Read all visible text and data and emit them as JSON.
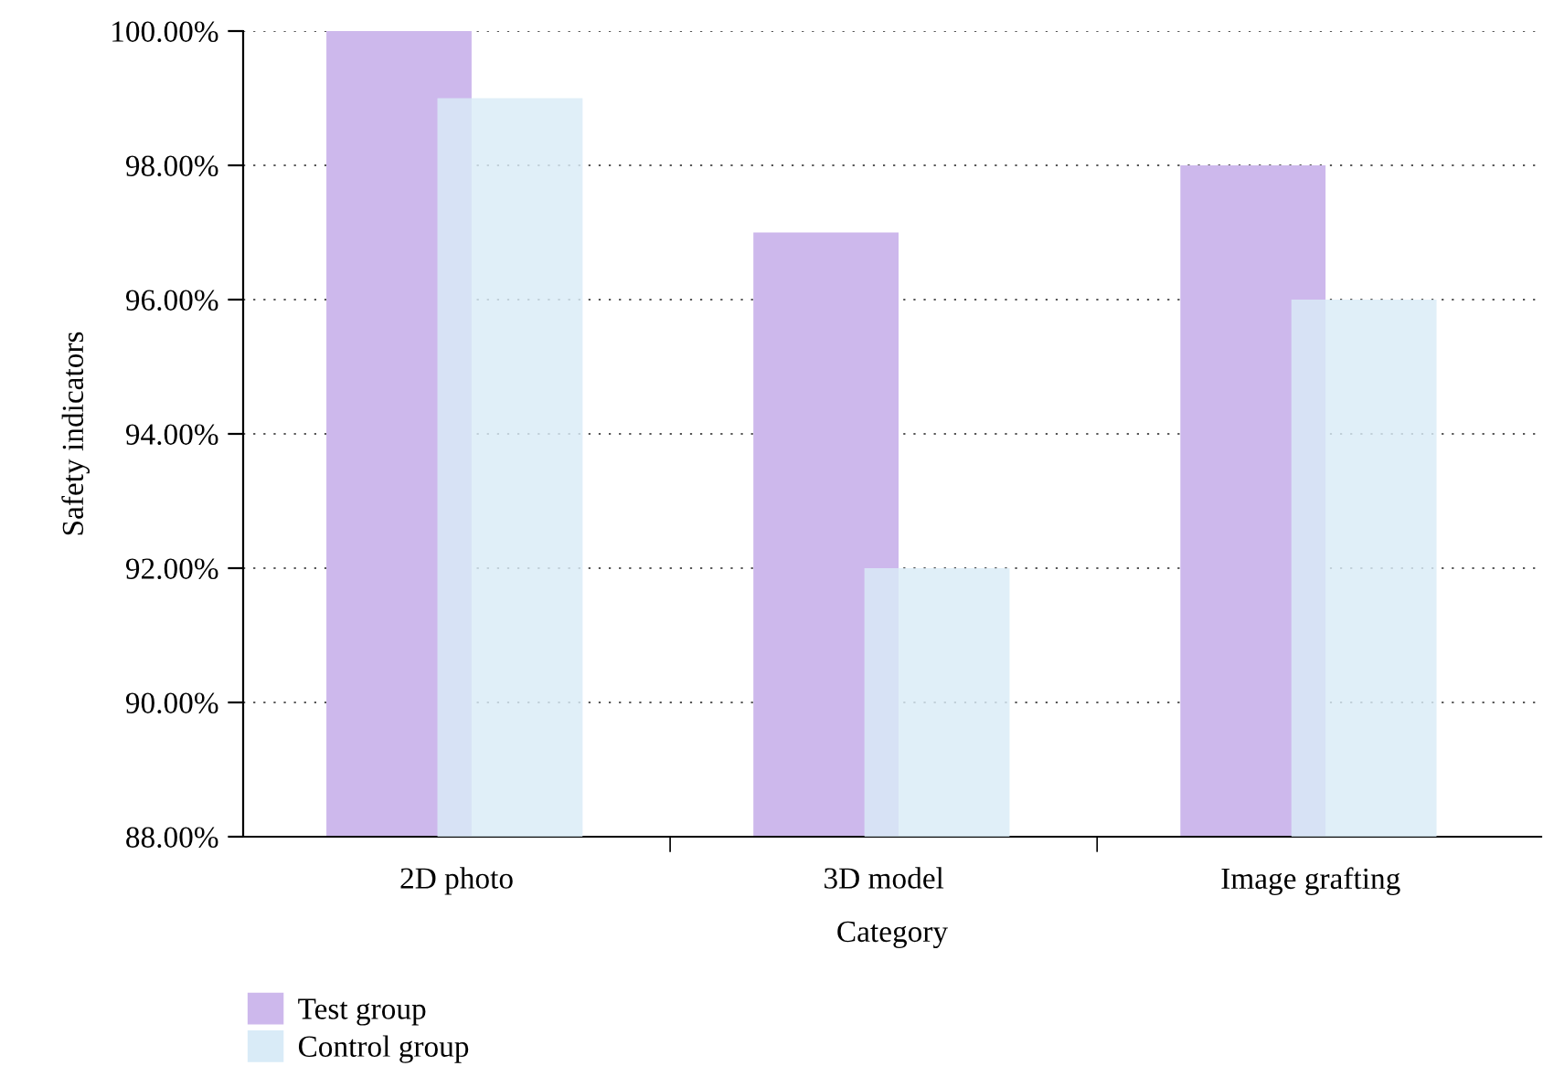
{
  "chart_data": {
    "type": "bar",
    "xlabel": "Category",
    "ylabel": "Safety indicators",
    "categories": [
      "2D photo",
      "3D model",
      "Image grafting"
    ],
    "series": [
      {
        "name": "Test group",
        "color": "#cdb8ec",
        "values": [
          100,
          97,
          98
        ]
      },
      {
        "name": "Control group",
        "color": "#d9ebf7",
        "values": [
          99,
          92,
          96
        ]
      }
    ],
    "ylim": [
      88,
      100
    ],
    "yticks": [
      {
        "value": 88,
        "label": "88.00%"
      },
      {
        "value": 90,
        "label": "90.00%"
      },
      {
        "value": 92,
        "label": "92.00%"
      },
      {
        "value": 94,
        "label": "94.00%"
      },
      {
        "value": 96,
        "label": "96.00%"
      },
      {
        "value": 98,
        "label": "98.00%"
      },
      {
        "value": 100,
        "label": "100.00%"
      }
    ],
    "grid": "y",
    "legend": "bottom left"
  }
}
